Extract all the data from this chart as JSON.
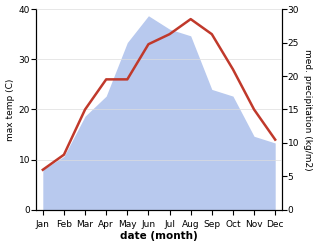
{
  "months": [
    "Jan",
    "Feb",
    "Mar",
    "Apr",
    "May",
    "Jun",
    "Jul",
    "Aug",
    "Sep",
    "Oct",
    "Nov",
    "Dec"
  ],
  "temperature": [
    8,
    11,
    20,
    26,
    26,
    33,
    35,
    38,
    35,
    28,
    20,
    14
  ],
  "precipitation": [
    6,
    8,
    14,
    17,
    25,
    29,
    27,
    26,
    18,
    17,
    11,
    10
  ],
  "temp_color": "#c0392b",
  "precip_color": "#b8c9ee",
  "xlabel": "date (month)",
  "ylabel_left": "max temp (C)",
  "ylabel_right": "med. precipitation (kg/m2)",
  "ylim_left": [
    0,
    40
  ],
  "ylim_right": [
    0,
    30
  ],
  "yticks_left": [
    0,
    10,
    20,
    30,
    40
  ],
  "yticks_right": [
    0,
    5,
    10,
    15,
    20,
    25,
    30
  ],
  "temp_linewidth": 1.8,
  "figsize": [
    3.18,
    2.47
  ],
  "dpi": 100
}
